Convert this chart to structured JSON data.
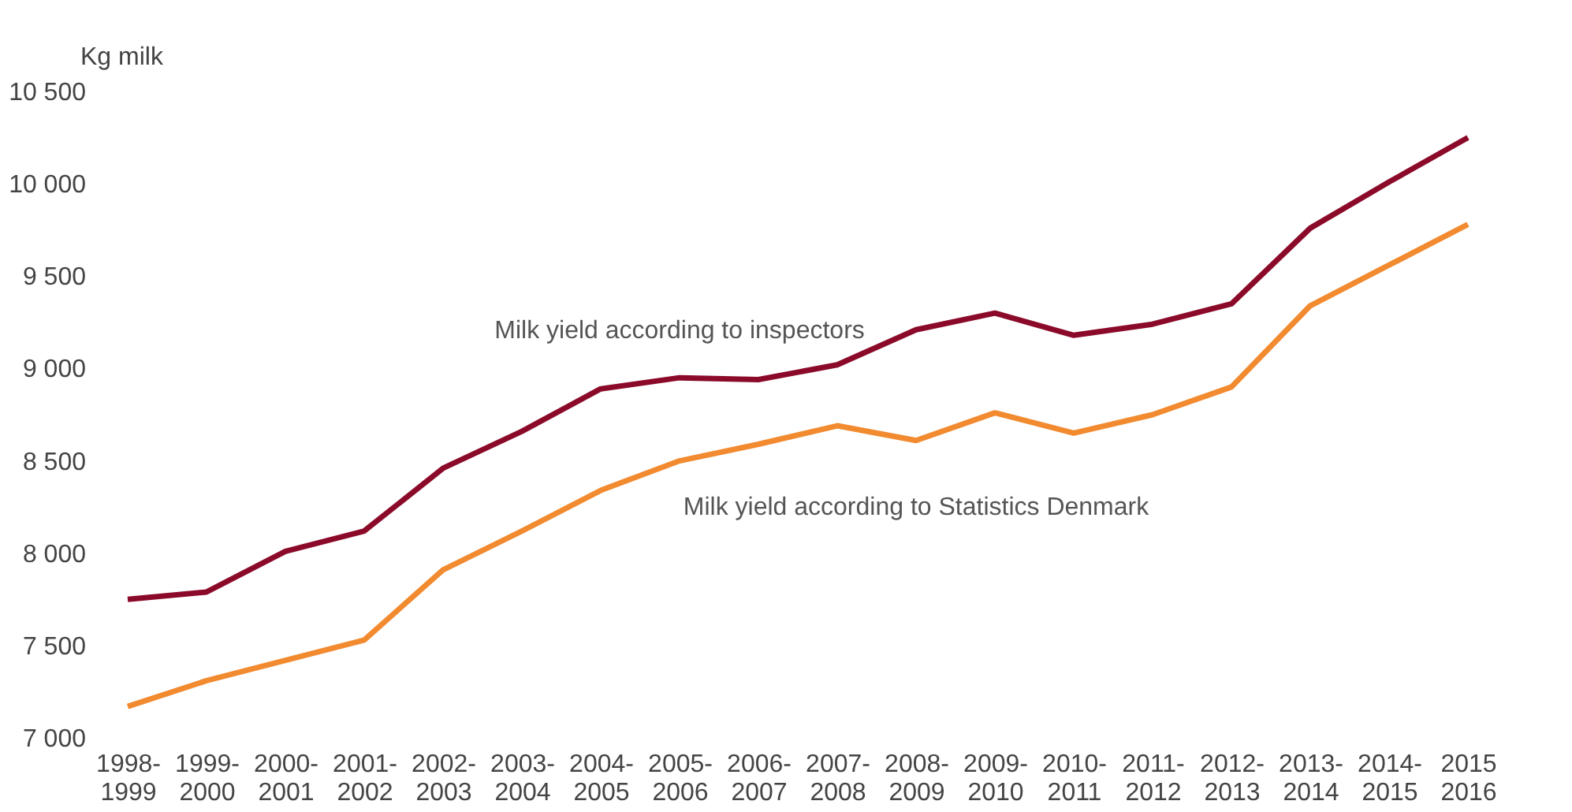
{
  "chart_data": {
    "type": "line",
    "ylabel": "Kg milk",
    "categories": [
      "1998-\n1999",
      "1999-\n2000",
      "2000-\n2001",
      "2001-\n2002",
      "2002-\n2003",
      "2003-\n2004",
      "2004-\n2005",
      "2005-\n2006",
      "2006-\n2007",
      "2007-\n2008",
      "2008-\n2009",
      "2009-\n2010",
      "2010-\n2011",
      "2011-\n2012",
      "2012-\n2013",
      "2013-\n2014",
      "2014-\n2015",
      "2015\n2016"
    ],
    "series": [
      {
        "name": "Milk yield according to inspectors",
        "color": "#8b0a2a",
        "values": [
          7750,
          7790,
          8010,
          8120,
          8460,
          8660,
          8890,
          8950,
          8940,
          9020,
          9210,
          9300,
          9180,
          9240,
          9350,
          9760,
          10010,
          10250
        ]
      },
      {
        "name": "Milk yield according to Statistics Denmark",
        "color": "#f28a30",
        "values": [
          7170,
          7310,
          7420,
          7530,
          7910,
          8120,
          8340,
          8500,
          8590,
          8690,
          8610,
          8760,
          8650,
          8750,
          8900,
          9340,
          9560,
          9780
        ]
      }
    ],
    "ylim": [
      7000,
      10500
    ],
    "yticks": [
      {
        "value": 7000,
        "label": "7 000"
      },
      {
        "value": 7500,
        "label": "7 500"
      },
      {
        "value": 8000,
        "label": "8 000"
      },
      {
        "value": 8500,
        "label": "8 500"
      },
      {
        "value": 9000,
        "label": "9 000"
      },
      {
        "value": 9500,
        "label": "9 500"
      },
      {
        "value": 10000,
        "label": "10 000"
      },
      {
        "value": 10500,
        "label": "10 500"
      }
    ],
    "grid": false
  }
}
